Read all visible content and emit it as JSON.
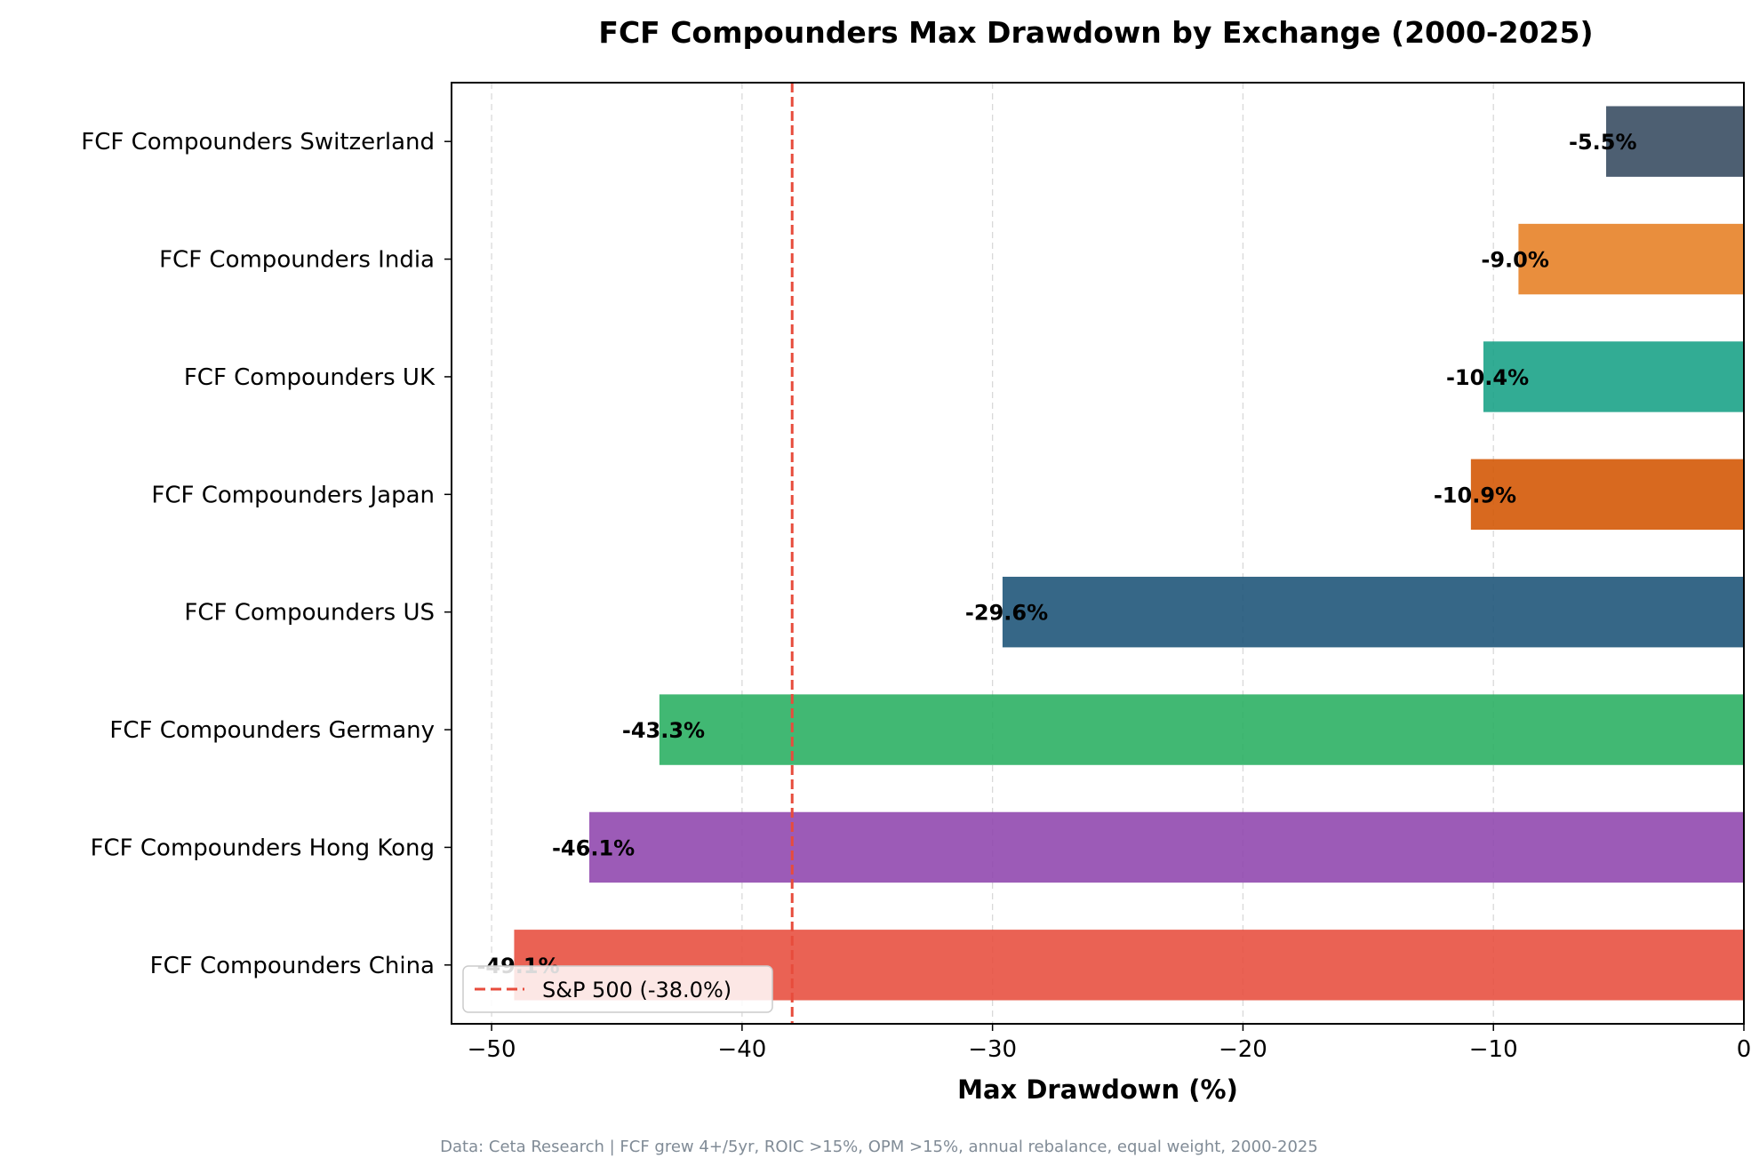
{
  "chart_data": {
    "type": "bar",
    "orientation": "horizontal",
    "title": "FCF Compounders Max Drawdown by Exchange (2000-2025)",
    "xlabel": "Max Drawdown (%)",
    "ylabel": "",
    "xlim": [
      -51.6,
      0
    ],
    "xticks": [
      -50,
      -40,
      -30,
      -20,
      -10,
      0
    ],
    "xtick_labels": [
      "−50",
      "−40",
      "−30",
      "−20",
      "−10",
      "0"
    ],
    "grid": "vertical dashed",
    "categories": [
      "FCF Compounders Switzerland",
      "FCF Compounders India",
      "FCF Compounders UK",
      "FCF Compounders Japan",
      "FCF Compounders US",
      "FCF Compounders Germany",
      "FCF Compounders Hong Kong",
      "FCF Compounders China"
    ],
    "values": [
      -5.5,
      -9.0,
      -10.4,
      -10.9,
      -29.6,
      -43.3,
      -46.1,
      -49.1
    ],
    "value_labels": [
      "-5.5%",
      "-9.0%",
      "-10.4%",
      "-10.9%",
      "-29.6%",
      "-43.3%",
      "-46.1%",
      "-49.1%"
    ],
    "colors": [
      "#34495e",
      "#e67e22",
      "#16a085",
      "#d35400",
      "#1a5276",
      "#27ae60",
      "#8e44ad",
      "#e74c3c"
    ],
    "reference_line": {
      "value": -38.0,
      "label": "S&P 500 (-38.0%)",
      "color": "#e74c3c",
      "style": "dashed"
    },
    "legend": {
      "placement": "lower-left",
      "entries": [
        "S&P 500 (-38.0%)"
      ]
    },
    "footnote": "Data: Ceta Research | FCF grew 4+/5yr, ROIC >15%, OPM >15%, annual rebalance, equal weight, 2000-2025"
  }
}
